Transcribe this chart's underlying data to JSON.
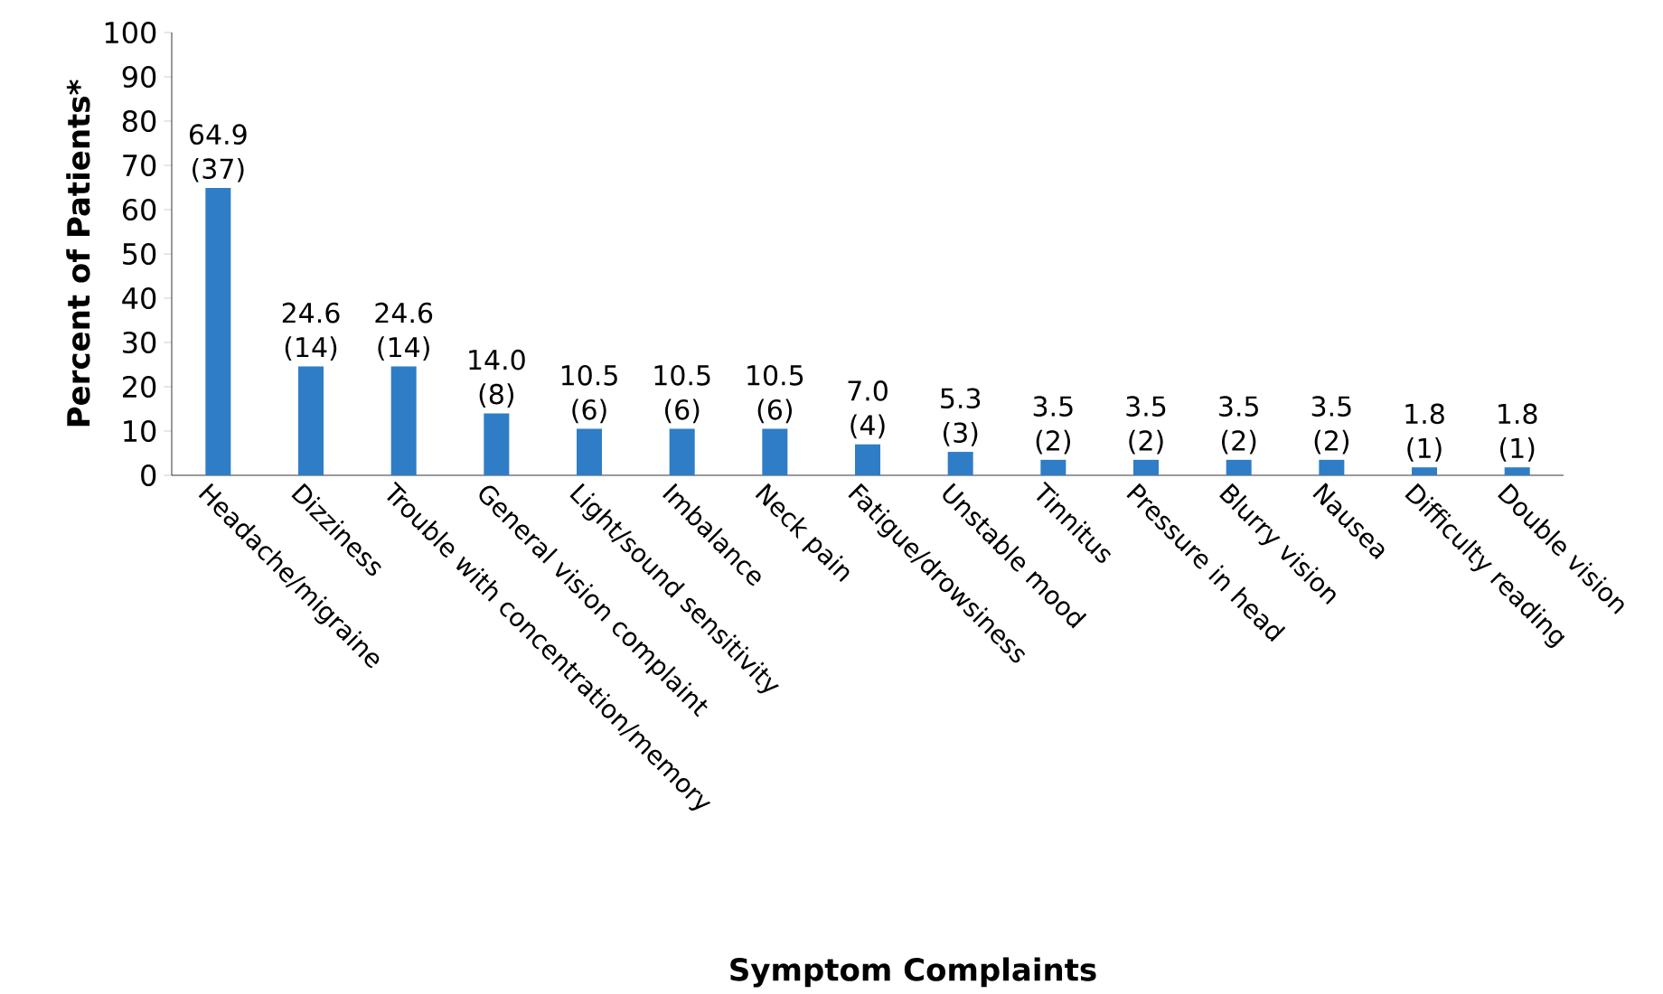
{
  "chart_data": {
    "type": "bar",
    "xlabel": "Symptom Complaints",
    "ylabel": "Percent of Patients*",
    "categories": [
      "Headache/migraine",
      "Dizziness",
      "Trouble with concentration/memory",
      "General vision complaint",
      "Light/sound sensitivity",
      "Imbalance",
      "Neck pain",
      "Fatigue/drowsiness",
      "Unstable mood",
      "Tinnitus",
      "Pressure in head",
      "Blurry vision",
      "Nausea",
      "Difficulty reading",
      "Double vision"
    ],
    "values": [
      64.9,
      24.6,
      24.6,
      14.0,
      10.5,
      10.5,
      10.5,
      7.0,
      5.3,
      3.5,
      3.5,
      3.5,
      3.5,
      1.8,
      1.8
    ],
    "value_labels": [
      "64.9 (37)",
      "24.6 (14)",
      "24.6 (14)",
      "14.0 (8)",
      "10.5 (6)",
      "10.5 (6)",
      "10.5 (6)",
      "7.0 (4)",
      "5.3 (3)",
      "3.5 (2)",
      "3.5 (2)",
      "3.5 (2)",
      "3.5 (2)",
      "1.8 (1)",
      "1.8 (1)"
    ],
    "color": "#2e7dc6",
    "ylim": [
      0,
      100
    ],
    "yticks": [
      0,
      10,
      20,
      30,
      40,
      50,
      60,
      70,
      80,
      90,
      100
    ]
  }
}
